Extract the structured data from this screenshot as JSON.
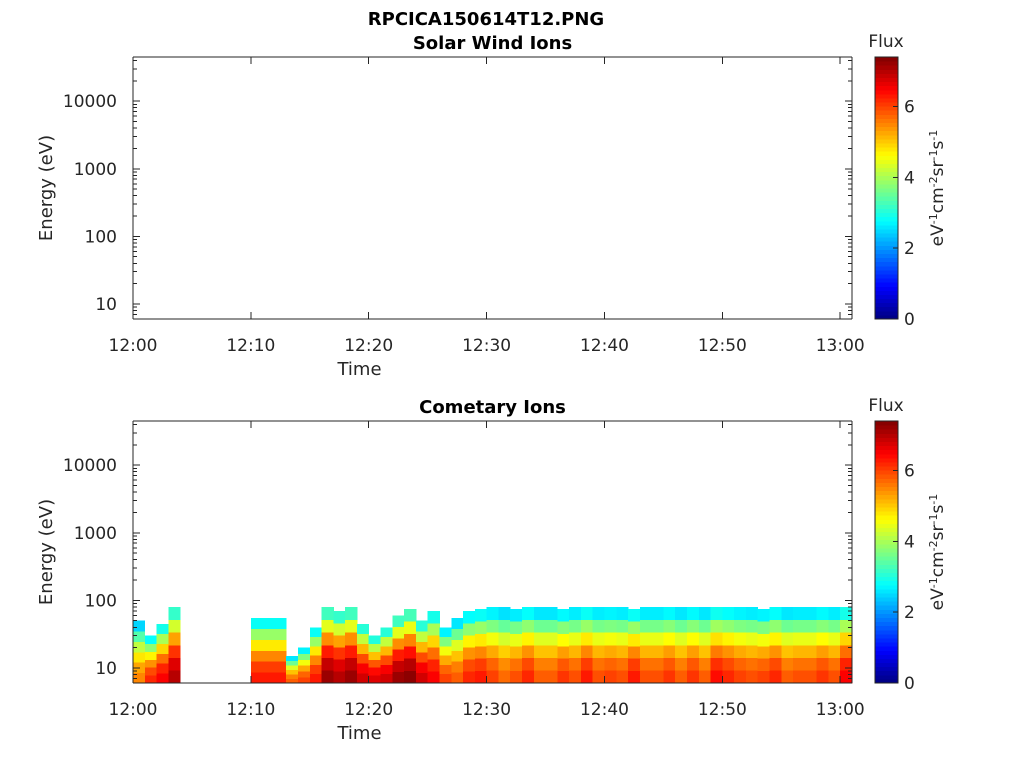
{
  "page_title": "RPCICA150614T12.PNG",
  "chart_data": [
    {
      "type": "heatmap",
      "title": "Solar Wind Ions",
      "xlabel": "Time",
      "ylabel": "Energy (eV)",
      "x_ticks": [
        "12:00",
        "12:10",
        "12:20",
        "12:30",
        "12:40",
        "12:50",
        "13:00"
      ],
      "xlim": [
        "12:00",
        "13:01"
      ],
      "y_ticks": [
        "10",
        "100",
        "1000",
        "10000"
      ],
      "ylim": [
        6,
        45000
      ],
      "y_scale": "log",
      "colorbar": {
        "title": "Flux",
        "label": "eV-1cm-2sr-1s-1",
        "ticks": [
          "0",
          "2",
          "4",
          "6"
        ],
        "range": [
          0,
          7.4
        ],
        "colormap": "jet"
      },
      "cells": []
    },
    {
      "type": "heatmap",
      "title": "Cometary Ions",
      "xlabel": "Time",
      "ylabel": "Energy (eV)",
      "x_ticks": [
        "12:00",
        "12:10",
        "12:20",
        "12:30",
        "12:40",
        "12:50",
        "13:00"
      ],
      "xlim": [
        "12:00",
        "13:01"
      ],
      "y_ticks": [
        "10",
        "100",
        "1000",
        "10000"
      ],
      "ylim": [
        6,
        45000
      ],
      "y_scale": "log",
      "colorbar": {
        "title": "Flux",
        "label": "eV-1cm-2sr-1s-1",
        "ticks": [
          "0",
          "2",
          "4",
          "6"
        ],
        "range": [
          0,
          7.4
        ],
        "colormap": "jet"
      },
      "data_gaps": [
        [
          "12:03.5",
          "12:09.8"
        ]
      ],
      "profile": [
        {
          "t": "12:00",
          "e_max": 50,
          "flux": 5.5
        },
        {
          "t": "12:01",
          "e_max": 30,
          "flux": 6.2
        },
        {
          "t": "12:02",
          "e_max": 45,
          "flux": 6.5
        },
        {
          "t": "12:03",
          "e_max": 80,
          "flux": 7.0
        },
        {
          "t": "12:10",
          "e_max": 55,
          "flux": 6.3
        },
        {
          "t": "12:11",
          "e_max": 55,
          "flux": 6.3
        },
        {
          "t": "12:12",
          "e_max": 55,
          "flux": 6.3
        },
        {
          "t": "12:13",
          "e_max": 15,
          "flux": 5.8
        },
        {
          "t": "12:14",
          "e_max": 20,
          "flux": 6.0
        },
        {
          "t": "12:15",
          "e_max": 40,
          "flux": 6.3
        },
        {
          "t": "12:16",
          "e_max": 80,
          "flux": 7.2
        },
        {
          "t": "12:17",
          "e_max": 70,
          "flux": 7.0
        },
        {
          "t": "12:18",
          "e_max": 80,
          "flux": 7.2
        },
        {
          "t": "12:19",
          "e_max": 45,
          "flux": 6.8
        },
        {
          "t": "12:20",
          "e_max": 30,
          "flux": 6.7
        },
        {
          "t": "12:21",
          "e_max": 40,
          "flux": 6.8
        },
        {
          "t": "12:22",
          "e_max": 60,
          "flux": 7.2
        },
        {
          "t": "12:23",
          "e_max": 75,
          "flux": 7.3
        },
        {
          "t": "12:24",
          "e_max": 50,
          "flux": 6.8
        },
        {
          "t": "12:25",
          "e_max": 70,
          "flux": 6.5
        },
        {
          "t": "12:26",
          "e_max": 40,
          "flux": 6.0
        },
        {
          "t": "12:27",
          "e_max": 55,
          "flux": 5.8
        },
        {
          "t": "12:28",
          "e_max": 70,
          "flux": 6.2
        },
        {
          "t": "12:29",
          "e_max": 75,
          "flux": 6.3
        },
        {
          "t": "12:30",
          "e_max": 80,
          "flux": 6.0
        },
        {
          "t": "12:31",
          "e_max": 80,
          "flux": 5.7
        },
        {
          "t": "12:32",
          "e_max": 75,
          "flux": 5.9
        },
        {
          "t": "12:33",
          "e_max": 80,
          "flux": 6.2
        },
        {
          "t": "12:34",
          "e_max": 80,
          "flux": 5.8
        },
        {
          "t": "12:35",
          "e_max": 80,
          "flux": 5.8
        },
        {
          "t": "12:36",
          "e_max": 75,
          "flux": 6.1
        },
        {
          "t": "12:37",
          "e_max": 80,
          "flux": 5.9
        },
        {
          "t": "12:38",
          "e_max": 80,
          "flux": 6.3
        },
        {
          "t": "12:39",
          "e_max": 80,
          "flux": 5.9
        },
        {
          "t": "12:40",
          "e_max": 80,
          "flux": 6.0
        },
        {
          "t": "12:41",
          "e_max": 80,
          "flux": 5.9
        },
        {
          "t": "12:42",
          "e_max": 75,
          "flux": 6.3
        },
        {
          "t": "12:43",
          "e_max": 80,
          "flux": 5.9
        },
        {
          "t": "12:44",
          "e_max": 80,
          "flux": 5.9
        },
        {
          "t": "12:45",
          "e_max": 80,
          "flux": 6.1
        },
        {
          "t": "12:46",
          "e_max": 80,
          "flux": 5.8
        },
        {
          "t": "12:47",
          "e_max": 80,
          "flux": 6.1
        },
        {
          "t": "12:48",
          "e_max": 80,
          "flux": 5.8
        },
        {
          "t": "12:49",
          "e_max": 80,
          "flux": 6.4
        },
        {
          "t": "12:50",
          "e_max": 80,
          "flux": 6.2
        },
        {
          "t": "12:51",
          "e_max": 80,
          "flux": 6.0
        },
        {
          "t": "12:52",
          "e_max": 80,
          "flux": 5.9
        },
        {
          "t": "12:53",
          "e_max": 75,
          "flux": 6.0
        },
        {
          "t": "12:54",
          "e_max": 80,
          "flux": 6.2
        },
        {
          "t": "12:55",
          "e_max": 80,
          "flux": 5.8
        },
        {
          "t": "12:56",
          "e_max": 80,
          "flux": 5.9
        },
        {
          "t": "12:57",
          "e_max": 80,
          "flux": 5.9
        },
        {
          "t": "12:58",
          "e_max": 80,
          "flux": 6.1
        },
        {
          "t": "12:59",
          "e_max": 80,
          "flux": 5.9
        },
        {
          "t": "13:00",
          "e_max": 80,
          "flux": 6.5
        }
      ]
    }
  ]
}
